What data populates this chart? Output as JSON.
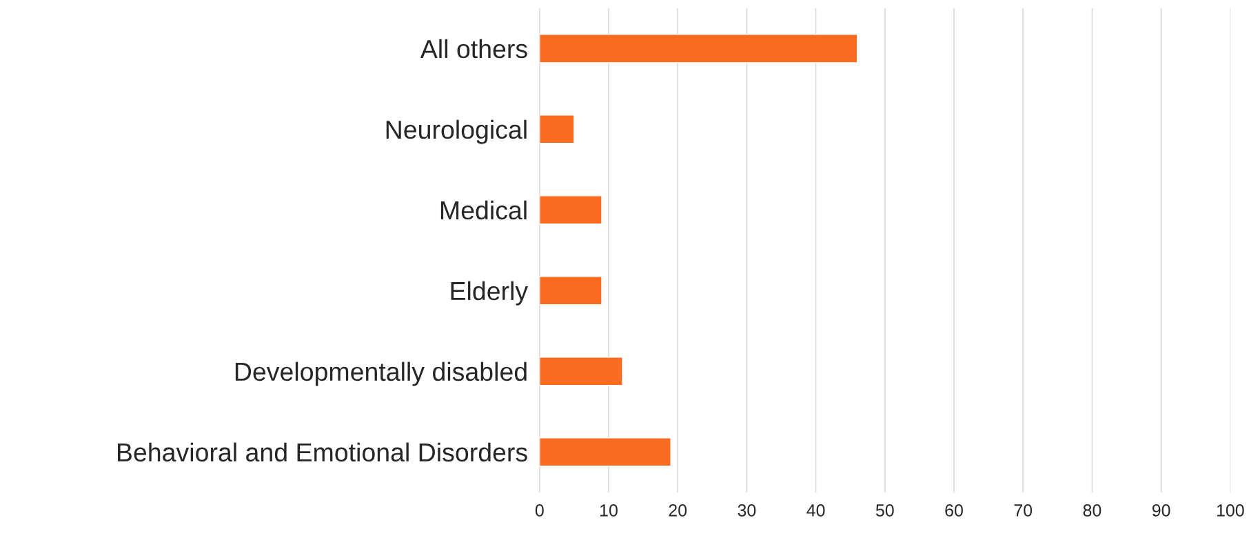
{
  "chart_data": {
    "type": "bar",
    "orientation": "horizontal",
    "categories": [
      "All others",
      "Neurological",
      "Medical",
      "Elderly",
      "Developmentally disabled",
      "Behavioral and Emotional Disorders"
    ],
    "values": [
      46,
      5,
      9,
      9,
      12,
      19
    ],
    "color": "#f96b1f",
    "xlim": [
      0,
      100
    ],
    "xticks": [
      0,
      10,
      20,
      30,
      40,
      50,
      60,
      70,
      80,
      90,
      100
    ],
    "grid": "x",
    "legend": false
  }
}
